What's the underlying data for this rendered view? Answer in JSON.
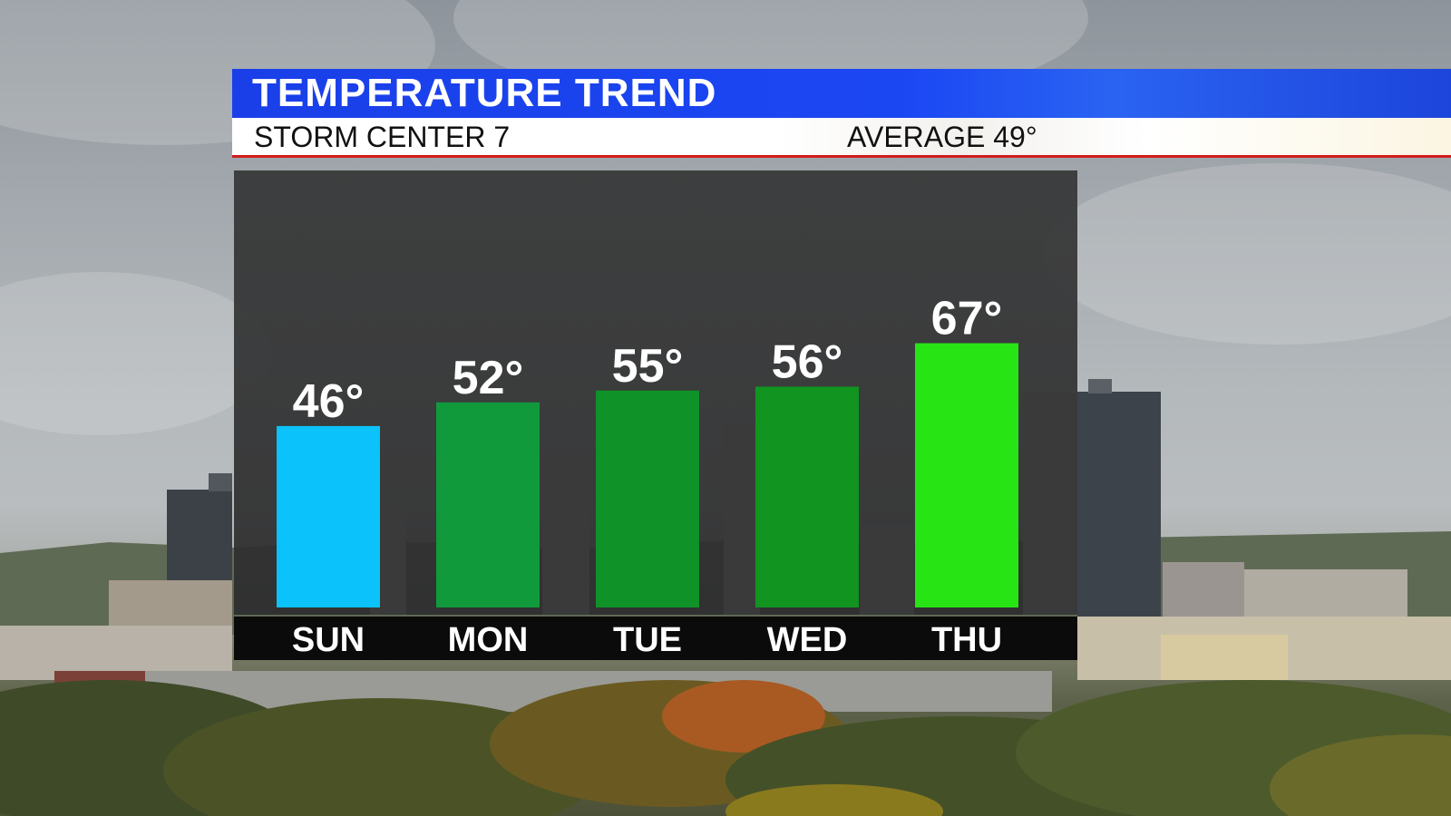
{
  "header": {
    "title": "TEMPERATURE TREND",
    "station": "STORM CENTER 7",
    "average_label": "AVERAGE 49°"
  },
  "colors": {
    "title_bar": "#1b47f3",
    "accent_line": "#d21c1c",
    "panel_background": "#333333",
    "day_strip": "#0b0b0b"
  },
  "chart_data": {
    "type": "bar",
    "categories": [
      "SUN",
      "MON",
      "TUE",
      "WED",
      "THU"
    ],
    "values": [
      46,
      52,
      55,
      56,
      67
    ],
    "value_labels": [
      "46°",
      "52°",
      "55°",
      "56°",
      "67°"
    ],
    "colors": [
      "#0bc2fb",
      "#119a3c",
      "#0f9227",
      "#119420",
      "#27e515"
    ],
    "ylim": [
      0,
      90
    ],
    "grid": false,
    "legend": "none"
  }
}
